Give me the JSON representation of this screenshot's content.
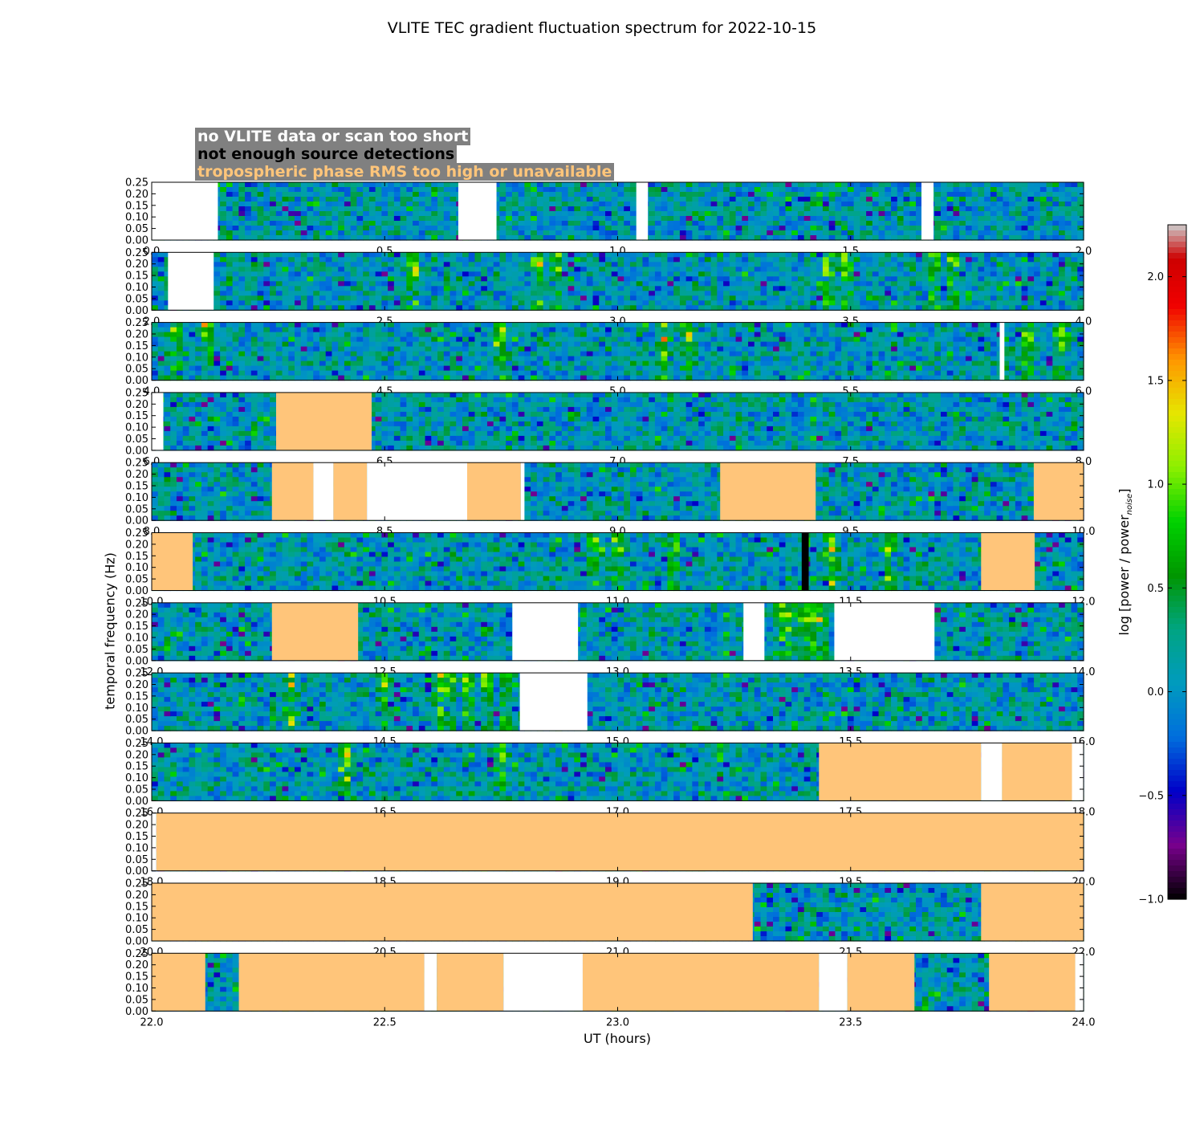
{
  "title": "VLITE TEC gradient fluctuation spectrum for 2022-10-15",
  "legend": {
    "no_data": "no VLITE data or scan too short",
    "no_detections": "not enough source detections",
    "tropo": "tropospheric phase RMS too high or unavailable"
  },
  "colors": {
    "no_data": "#ffffff",
    "no_detections": "#000000",
    "tropo": "#ffc57a",
    "legend_bg": "#808080"
  },
  "chart_data": {
    "type": "heatmap",
    "xlabel": "UT (hours)",
    "ylabel": "temporal frequency (Hz)",
    "colorbar": {
      "label": "log [power / power",
      "label_sub": "noise",
      "label_end": "]",
      "range": [
        -1.0,
        2.25
      ],
      "ticks": [
        "-1.0",
        "-0.5",
        "0.0",
        "0.5",
        "1.0",
        "1.5",
        "2.0"
      ],
      "cmap": "nipy_spectral"
    },
    "ylim": [
      0,
      0.25
    ],
    "yticks": [
      "0.00",
      "0.05",
      "0.10",
      "0.15",
      "0.20",
      "0.25"
    ],
    "panels": [
      {
        "xlim": [
          0,
          2
        ],
        "xticks": [
          "0.0",
          "0.5",
          "1.0",
          "1.5",
          "2.0"
        ],
        "masked": [
          {
            "t": [
              0.0,
              0.142
            ],
            "flag": "no_data"
          },
          {
            "t": [
              0.658,
              0.74
            ],
            "flag": "no_data"
          },
          {
            "t": [
              1.04,
              1.065
            ],
            "flag": "no_data"
          },
          {
            "t": [
              1.652,
              1.678
            ],
            "flag": "no_data"
          }
        ],
        "hot": []
      },
      {
        "xlim": [
          2,
          4
        ],
        "xticks": [
          "2.0",
          "2.5",
          "3.0",
          "3.5",
          "4.0"
        ],
        "masked": [
          {
            "t": [
              2.035,
              2.133
            ],
            "flag": "no_data"
          }
        ],
        "hot": [
          2.56,
          2.83,
          2.87,
          3.45,
          3.49,
          3.68,
          3.72
        ]
      },
      {
        "xlim": [
          4,
          6
        ],
        "xticks": [
          "4.0",
          "4.5",
          "5.0",
          "5.5",
          "6.0"
        ],
        "masked": [
          {
            "t": [
              5.82,
              5.83
            ],
            "flag": "no_data"
          }
        ],
        "hot": [
          4.05,
          4.12,
          4.75,
          5.1,
          5.15,
          5.88,
          5.95
        ]
      },
      {
        "xlim": [
          6,
          8
        ],
        "xticks": [
          "6.0",
          "6.5",
          "7.0",
          "7.5",
          "8.0"
        ],
        "masked": [
          {
            "t": [
              6.0,
              6.025
            ],
            "flag": "no_data"
          },
          {
            "t": [
              6.267,
              6.472
            ],
            "flag": "tropo"
          }
        ],
        "hot": []
      },
      {
        "xlim": [
          8,
          10
        ],
        "xticks": [
          "8.0",
          "8.5",
          "9.0",
          "9.5",
          "10.0"
        ],
        "masked": [
          {
            "t": [
              8.258,
              8.347
            ],
            "flag": "tropo"
          },
          {
            "t": [
              8.347,
              8.39
            ],
            "flag": "no_data"
          },
          {
            "t": [
              8.39,
              8.462
            ],
            "flag": "tropo"
          },
          {
            "t": [
              8.462,
              8.677
            ],
            "flag": "no_data"
          },
          {
            "t": [
              8.677,
              8.792
            ],
            "flag": "tropo"
          },
          {
            "t": [
              8.792,
              8.8
            ],
            "flag": "no_data"
          },
          {
            "t": [
              9.22,
              9.425
            ],
            "flag": "tropo"
          },
          {
            "t": [
              9.893,
              10.0
            ],
            "flag": "tropo"
          }
        ],
        "hot": []
      },
      {
        "xlim": [
          10,
          12
        ],
        "xticks": [
          "10.0",
          "10.5",
          "11.0",
          "11.5",
          "12.0"
        ],
        "masked": [
          {
            "t": [
              10.0,
              10.088
            ],
            "flag": "tropo"
          },
          {
            "t": [
              11.395,
              11.41
            ],
            "flag": "no_detections"
          },
          {
            "t": [
              11.78,
              11.895
            ],
            "flag": "tropo"
          }
        ],
        "hot": [
          10.95,
          11.0,
          11.12,
          11.46,
          11.58
        ]
      },
      {
        "xlim": [
          12,
          14
        ],
        "xticks": [
          "12.0",
          "12.5",
          "13.0",
          "13.5",
          "14.0"
        ],
        "masked": [
          {
            "t": [
              12.258,
              12.443
            ],
            "flag": "tropo"
          },
          {
            "t": [
              12.774,
              12.915
            ],
            "flag": "no_data"
          },
          {
            "t": [
              13.27,
              13.315
            ],
            "flag": "no_data"
          },
          {
            "t": [
              13.465,
              13.68
            ],
            "flag": "no_data"
          }
        ],
        "hot": [
          13.35,
          13.37,
          13.4,
          13.42,
          13.44
        ]
      },
      {
        "xlim": [
          14,
          16
        ],
        "xticks": [
          "14.0",
          "14.5",
          "15.0",
          "15.5",
          "16.0"
        ],
        "masked": [
          {
            "t": [
              14.79,
              14.935
            ],
            "flag": "no_data"
          }
        ],
        "hot": [
          14.3,
          14.5,
          14.62,
          14.64,
          14.68,
          14.72,
          14.76
        ]
      },
      {
        "xlim": [
          16,
          18
        ],
        "xticks": [
          "16.0",
          "16.5",
          "17.0",
          "17.5",
          "18.0"
        ],
        "masked": [
          {
            "t": [
              17.432,
              17.78
            ],
            "flag": "tropo"
          },
          {
            "t": [
              17.78,
              17.825
            ],
            "flag": "no_data"
          },
          {
            "t": [
              17.825,
              17.975
            ],
            "flag": "tropo"
          },
          {
            "t": [
              17.975,
              18.0
            ],
            "flag": "no_data"
          }
        ],
        "hot": [
          16.42,
          16.75
        ]
      },
      {
        "xlim": [
          18,
          20
        ],
        "xticks": [
          "18.0",
          "18.5",
          "19.0",
          "19.5",
          "20.0"
        ],
        "masked": [
          {
            "t": [
              18.0,
              18.01
            ],
            "flag": "no_data"
          },
          {
            "t": [
              18.01,
              20.0
            ],
            "flag": "tropo"
          }
        ],
        "hot": []
      },
      {
        "xlim": [
          20,
          22
        ],
        "xticks": [
          "20.0",
          "20.5",
          "21.0",
          "21.5",
          "22.0"
        ],
        "masked": [
          {
            "t": [
              20.0,
              21.29
            ],
            "flag": "tropo"
          },
          {
            "t": [
              21.78,
              22.0
            ],
            "flag": "tropo"
          }
        ],
        "hot": []
      },
      {
        "xlim": [
          22,
          24
        ],
        "xticks": [
          "22.0",
          "22.5",
          "23.0",
          "23.5",
          "24.0"
        ],
        "masked": [
          {
            "t": [
              22.0,
              22.115
            ],
            "flag": "tropo"
          },
          {
            "t": [
              22.187,
              22.585
            ],
            "flag": "tropo"
          },
          {
            "t": [
              22.585,
              22.612
            ],
            "flag": "no_data"
          },
          {
            "t": [
              22.612,
              22.755
            ],
            "flag": "tropo"
          },
          {
            "t": [
              22.755,
              22.925
            ],
            "flag": "no_data"
          },
          {
            "t": [
              22.925,
              23.432
            ],
            "flag": "tropo"
          },
          {
            "t": [
              23.432,
              23.493
            ],
            "flag": "no_data"
          },
          {
            "t": [
              23.493,
              23.637
            ],
            "flag": "tropo"
          },
          {
            "t": [
              23.797,
              23.982
            ],
            "flag": "tropo"
          },
          {
            "t": [
              23.982,
              24.0
            ],
            "flag": "no_data"
          }
        ],
        "hot": []
      }
    ]
  }
}
